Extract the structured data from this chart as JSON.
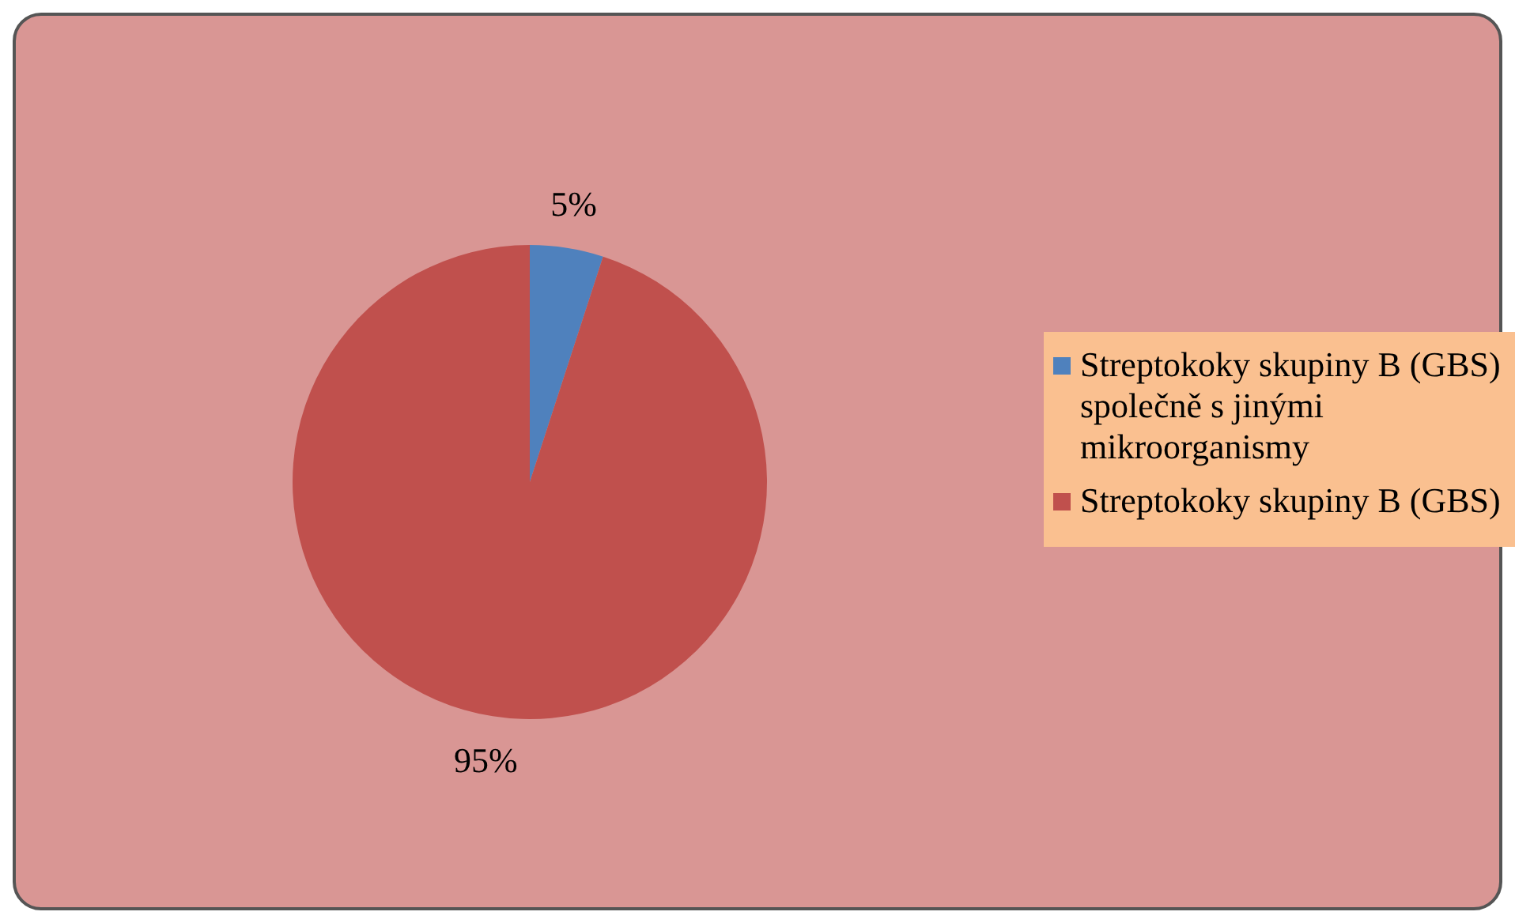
{
  "chart_data": {
    "type": "pie",
    "categories": [
      "Streptokoky skupiny B (GBS) společně s jinými mikroorganismy",
      "Streptokoky skupiny B (GBS)"
    ],
    "values": [
      5,
      95
    ],
    "colors": [
      "#4f81bd",
      "#c0504d"
    ],
    "value_labels": [
      "5%",
      "95%"
    ],
    "legend": "right"
  }
}
